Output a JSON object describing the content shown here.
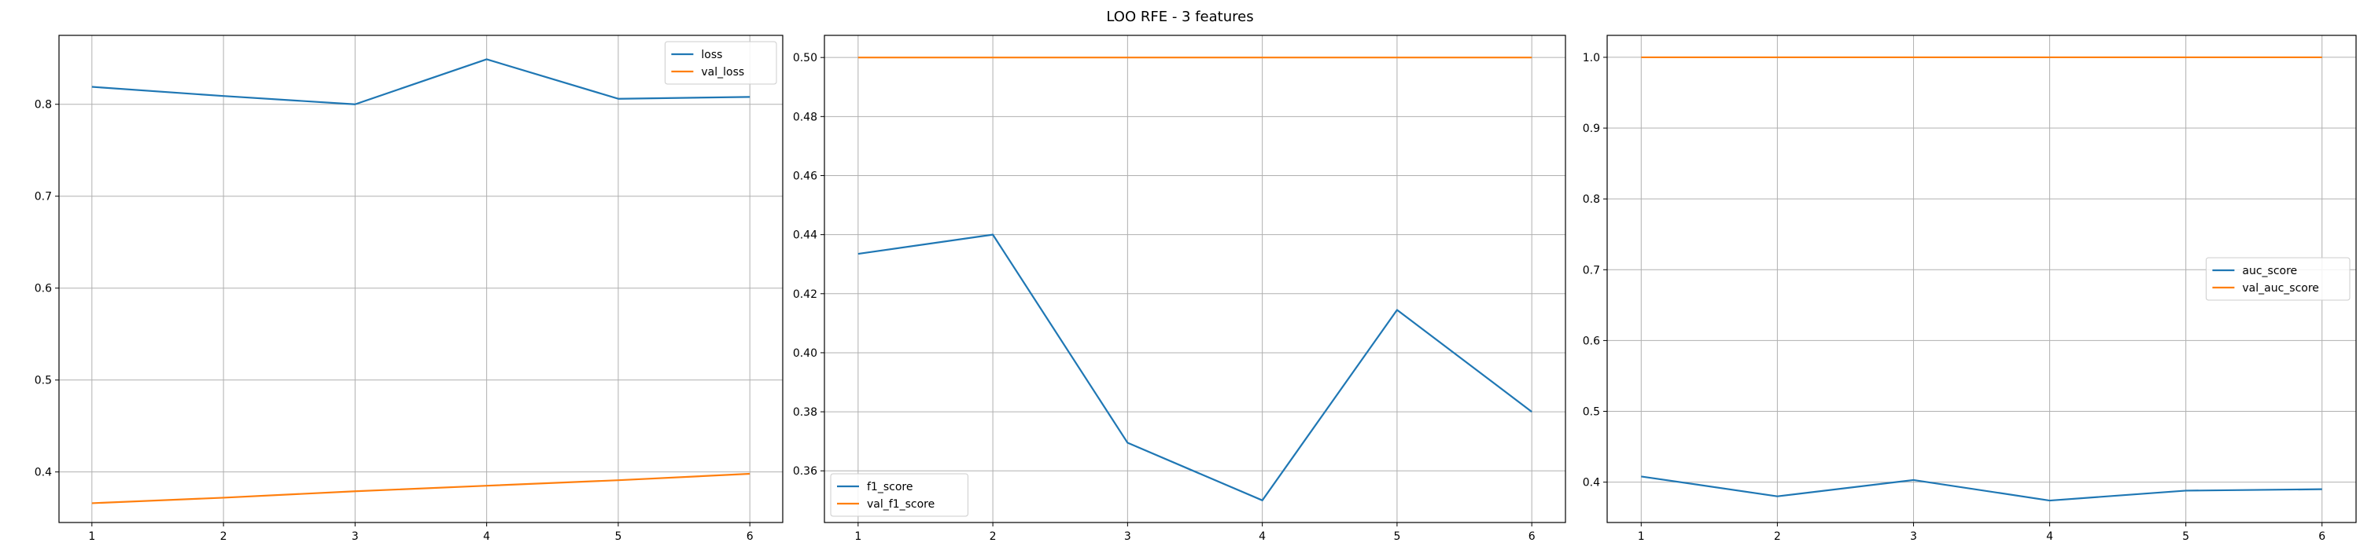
{
  "figure": {
    "title": "LOO RFE - 3 features"
  },
  "colors": {
    "series1": "#1f77b4",
    "series2": "#ff7f0e",
    "grid": "#b0b0b0",
    "axes": "#000000"
  },
  "chart_data": [
    {
      "type": "line",
      "x": [
        1,
        2,
        3,
        4,
        5,
        6
      ],
      "xticks": [
        "1",
        "2",
        "3",
        "4",
        "5",
        "6"
      ],
      "xlim": [
        0.75,
        6.25
      ],
      "ylim": [
        0.345,
        0.875
      ],
      "yticks": [
        0.4,
        0.5,
        0.6,
        0.7,
        0.8
      ],
      "ytick_labels": [
        "0.4",
        "0.5",
        "0.6",
        "0.7",
        "0.8"
      ],
      "grid": true,
      "legend_position": "upper right",
      "series": [
        {
          "name": "loss",
          "color": "#1f77b4",
          "values": [
            0.819,
            0.809,
            0.8,
            0.849,
            0.806,
            0.808
          ]
        },
        {
          "name": "val_loss",
          "color": "#ff7f0e",
          "values": [
            0.366,
            0.372,
            0.379,
            0.385,
            0.391,
            0.398
          ]
        }
      ]
    },
    {
      "type": "line",
      "x": [
        1,
        2,
        3,
        4,
        5,
        6
      ],
      "xticks": [
        "1",
        "2",
        "3",
        "4",
        "5",
        "6"
      ],
      "xlim": [
        0.75,
        6.25
      ],
      "ylim": [
        0.3425,
        0.5075
      ],
      "yticks": [
        0.36,
        0.38,
        0.4,
        0.42,
        0.44,
        0.46,
        0.48,
        0.5
      ],
      "ytick_labels": [
        "0.36",
        "0.38",
        "0.40",
        "0.42",
        "0.44",
        "0.46",
        "0.48",
        "0.50"
      ],
      "grid": true,
      "legend_position": "lower left",
      "series": [
        {
          "name": "f1_score",
          "color": "#1f77b4",
          "values": [
            0.4335,
            0.44,
            0.3695,
            0.35,
            0.4145,
            0.38
          ]
        },
        {
          "name": "val_f1_score",
          "color": "#ff7f0e",
          "values": [
            0.5,
            0.5,
            0.5,
            0.5,
            0.5,
            0.5
          ]
        }
      ]
    },
    {
      "type": "line",
      "x": [
        1,
        2,
        3,
        4,
        5,
        6
      ],
      "xticks": [
        "1",
        "2",
        "3",
        "4",
        "5",
        "6"
      ],
      "xlim": [
        0.75,
        6.25
      ],
      "ylim": [
        0.343,
        1.031
      ],
      "yticks": [
        0.4,
        0.5,
        0.6,
        0.7,
        0.8,
        0.9,
        1.0
      ],
      "ytick_labels": [
        "0.4",
        "0.5",
        "0.6",
        "0.7",
        "0.8",
        "0.9",
        "1.0"
      ],
      "grid": true,
      "legend_position": "center right",
      "series": [
        {
          "name": "auc_score",
          "color": "#1f77b4",
          "values": [
            0.408,
            0.38,
            0.403,
            0.374,
            0.388,
            0.39
          ]
        },
        {
          "name": "val_auc_score",
          "color": "#ff7f0e",
          "values": [
            1.0,
            1.0,
            1.0,
            1.0,
            1.0,
            1.0
          ]
        }
      ]
    }
  ]
}
